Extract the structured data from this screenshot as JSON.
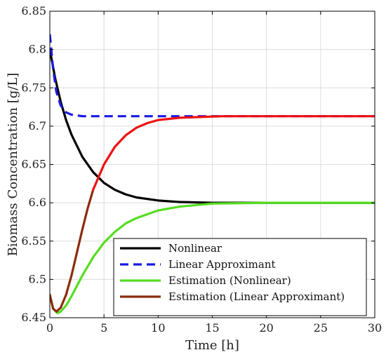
{
  "chart_data": {
    "type": "line",
    "title": "",
    "xlabel": "Time [h]",
    "ylabel": "Biomass Concentration [g/L]",
    "xlim": [
      0,
      30
    ],
    "ylim": [
      6.45,
      6.85
    ],
    "xticks": [
      0,
      5,
      10,
      15,
      20,
      25,
      30
    ],
    "xtick_labels": [
      "0",
      "5",
      "10",
      "15",
      "20",
      "25",
      "30"
    ],
    "yticks": [
      6.45,
      6.5,
      6.55,
      6.6,
      6.65,
      6.7,
      6.75,
      6.8,
      6.85
    ],
    "ytick_labels": [
      "6.45",
      "6.5",
      "6.55",
      "6.6",
      "6.65",
      "6.7",
      "6.75",
      "6.8",
      "6.85"
    ],
    "grid": true,
    "legend_position": "bottom-right",
    "series": [
      {
        "name": "Nonlinear",
        "color": "#000000",
        "dash": "solid",
        "x": [
          0,
          0.5,
          1,
          1.5,
          2,
          3,
          4,
          5,
          6,
          7,
          8,
          10,
          12,
          15,
          20,
          25,
          30
        ],
        "y": [
          6.8,
          6.762,
          6.732,
          6.708,
          6.689,
          6.66,
          6.64,
          6.626,
          6.617,
          6.611,
          6.607,
          6.603,
          6.601,
          6.6,
          6.6,
          6.6,
          6.6
        ]
      },
      {
        "name": "Linear Approximant",
        "color": "#1a1ae6",
        "dash": "dashed",
        "x": [
          0,
          0.3,
          0.6,
          1,
          1.5,
          2,
          3,
          5,
          10,
          20,
          30
        ],
        "y": [
          6.82,
          6.775,
          6.745,
          6.727,
          6.718,
          6.715,
          6.713,
          6.713,
          6.713,
          6.713,
          6.713
        ]
      },
      {
        "name": "Estimation (Nonlinear)",
        "color": "#55dd22",
        "dash": "solid",
        "x": [
          0,
          0.3,
          0.7,
          1,
          1.5,
          2,
          3,
          4,
          5,
          6,
          7,
          8,
          10,
          12,
          15,
          20,
          25,
          30
        ],
        "y": [
          6.48,
          6.462,
          6.456,
          6.458,
          6.466,
          6.478,
          6.505,
          6.529,
          6.548,
          6.562,
          6.573,
          6.58,
          6.59,
          6.595,
          6.599,
          6.6,
          6.6,
          6.6
        ]
      },
      {
        "name": "Estimation (Linear Approximant)",
        "color": "#8b2c0c",
        "dash": "solid",
        "x": [
          0,
          0.3,
          0.6,
          1,
          1.5,
          2,
          2.5,
          3,
          3.5,
          4
        ],
        "y": [
          6.48,
          6.462,
          6.458,
          6.463,
          6.48,
          6.505,
          6.535,
          6.565,
          6.593,
          6.617
        ]
      },
      {
        "name": "",
        "color": "#ee1111",
        "dash": "solid",
        "x": [
          4,
          5,
          6,
          7,
          8,
          9,
          10,
          12,
          14,
          16,
          20,
          25,
          30
        ],
        "y": [
          6.617,
          6.65,
          6.673,
          6.688,
          6.698,
          6.704,
          6.708,
          6.711,
          6.712,
          6.713,
          6.713,
          6.713,
          6.713
        ]
      }
    ]
  }
}
